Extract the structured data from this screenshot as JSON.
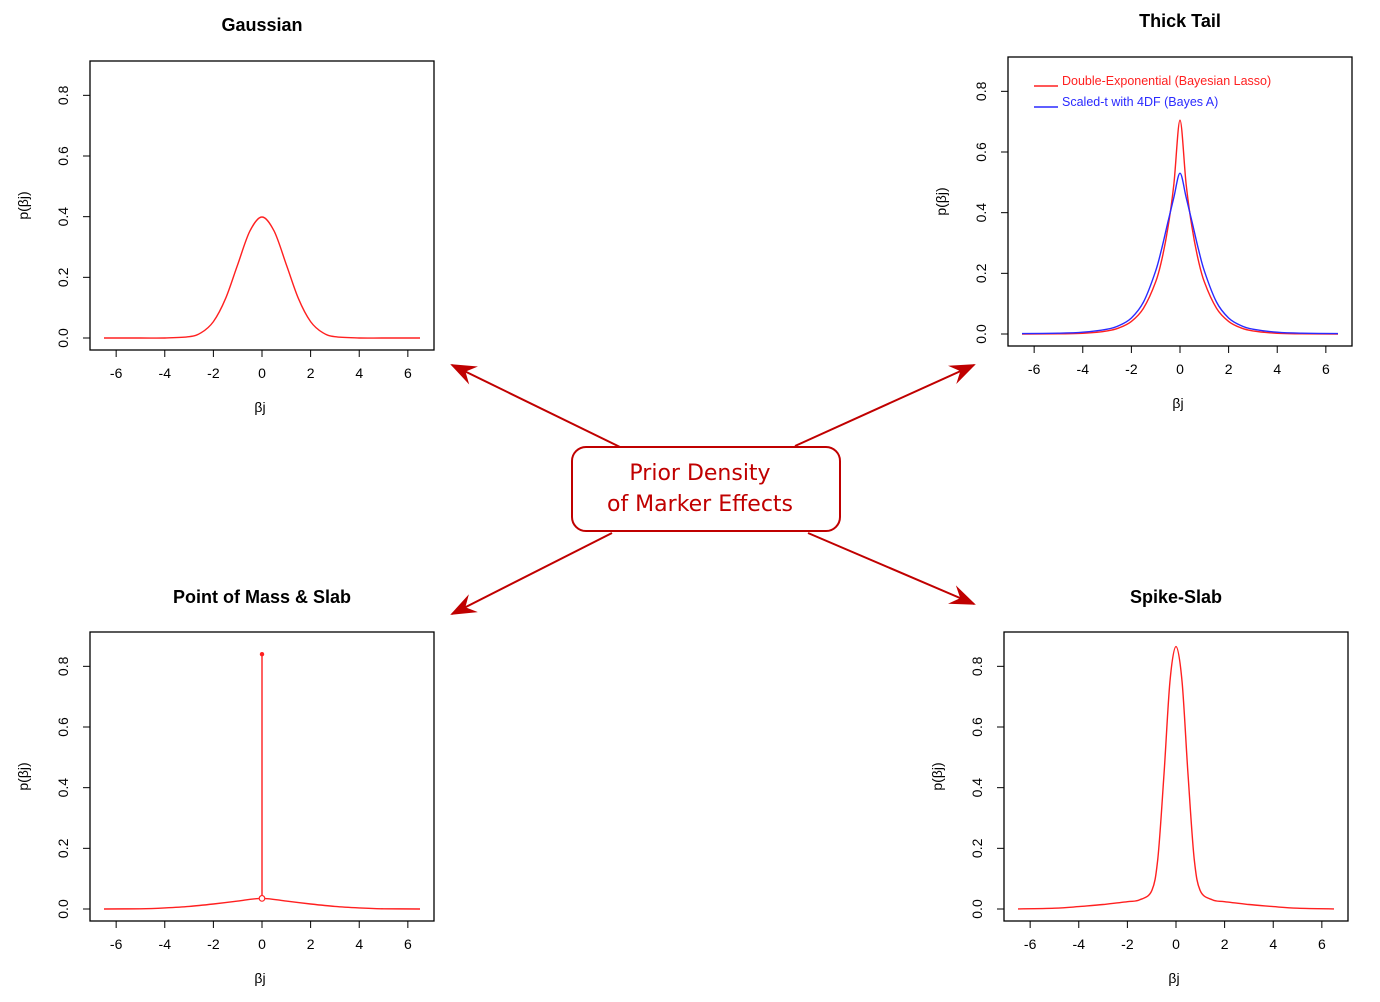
{
  "center_box": {
    "line1": "Prior Density",
    "line2": "of Marker Effects"
  },
  "colors": {
    "red": "#ff2020",
    "blue": "#2a2aff",
    "arrow": "#c00000"
  },
  "chart_data": [
    {
      "id": "gaussian",
      "type": "line",
      "title": "Gaussian",
      "xlabel": "βj",
      "ylabel": "p(βj)",
      "xlim": [
        -6.5,
        6.5
      ],
      "ylim": [
        0,
        0.9
      ],
      "xticks": [
        "-6",
        "-4",
        "-2",
        "0",
        "2",
        "4",
        "6"
      ],
      "yticks": [
        "0.0",
        "0.2",
        "0.4",
        "0.6",
        "0.8"
      ],
      "series": [
        {
          "color": "#ff2020",
          "x": [
            -6.5,
            -5,
            -4,
            -3,
            -2.5,
            -2,
            -1.5,
            -1,
            -0.5,
            0,
            0.5,
            1,
            1.5,
            2,
            2.5,
            3,
            4,
            5,
            6.5
          ],
          "values": [
            0,
            0,
            0.0001,
            0.0044,
            0.0175,
            0.054,
            0.1295,
            0.242,
            0.352,
            0.399,
            0.352,
            0.242,
            0.1295,
            0.054,
            0.0175,
            0.0044,
            0.0001,
            0,
            0
          ]
        }
      ]
    },
    {
      "id": "thick-tail",
      "type": "line",
      "title": "Thick Tail",
      "xlabel": "βj",
      "ylabel": "p(βj)",
      "xlim": [
        -6.5,
        6.5
      ],
      "ylim": [
        0,
        0.9
      ],
      "xticks": [
        "-6",
        "-4",
        "-2",
        "0",
        "2",
        "4",
        "6"
      ],
      "yticks": [
        "0.0",
        "0.2",
        "0.4",
        "0.6",
        "0.8"
      ],
      "legend": {
        "position": "top"
      },
      "series": [
        {
          "name": "Double-Exponential (Bayesian Lasso)",
          "color": "#ff2020",
          "x": [
            -6.5,
            -5,
            -4,
            -3,
            -2.5,
            -2,
            -1.5,
            -1,
            -0.75,
            -0.5,
            -0.25,
            0,
            0.25,
            0.5,
            0.75,
            1,
            1.5,
            2,
            2.5,
            3,
            4,
            5,
            6.5
          ],
          "values": [
            0.0001,
            0.0006,
            0.0024,
            0.0101,
            0.0205,
            0.0415,
            0.085,
            0.172,
            0.245,
            0.348,
            0.495,
            0.705,
            0.495,
            0.348,
            0.245,
            0.172,
            0.085,
            0.0415,
            0.0205,
            0.0101,
            0.0024,
            0.0006,
            0.0001
          ]
        },
        {
          "name": "Scaled-t with 4DF (Bayes A)",
          "color": "#2a2aff",
          "x": [
            -6.5,
            -5,
            -4,
            -3,
            -2.5,
            -2,
            -1.5,
            -1,
            -0.75,
            -0.5,
            -0.25,
            0,
            0.25,
            0.5,
            0.75,
            1,
            1.5,
            2,
            2.5,
            3,
            4,
            5,
            6.5
          ],
          "values": [
            0.0012,
            0.0026,
            0.0058,
            0.0158,
            0.0279,
            0.0528,
            0.1055,
            0.2084,
            0.2824,
            0.3676,
            0.4509,
            0.53,
            0.4509,
            0.3676,
            0.2824,
            0.2084,
            0.1055,
            0.0528,
            0.0279,
            0.0158,
            0.0058,
            0.0026,
            0.0012
          ]
        }
      ]
    },
    {
      "id": "point-mass-slab",
      "type": "line",
      "title": "Point of Mass & Slab",
      "xlabel": "βj",
      "ylabel": "p(βj)",
      "xlim": [
        -6.5,
        6.5
      ],
      "ylim": [
        0,
        0.9
      ],
      "xticks": [
        "-6",
        "-4",
        "-2",
        "0",
        "2",
        "4",
        "6"
      ],
      "yticks": [
        "0.0",
        "0.2",
        "0.4",
        "0.6",
        "0.8"
      ],
      "spike": {
        "x": 0,
        "top": 0.84,
        "bottom": 0.035
      },
      "series": [
        {
          "color": "#ff2020",
          "x": [
            -6.5,
            -5,
            -4,
            -3,
            -2,
            -1,
            0,
            1,
            2,
            3,
            4,
            5,
            6.5
          ],
          "values": [
            0.0001,
            0.0008,
            0.0035,
            0.0085,
            0.0165,
            0.0262,
            0.035,
            0.0262,
            0.0165,
            0.0085,
            0.0035,
            0.0008,
            0.0001
          ]
        }
      ]
    },
    {
      "id": "spike-slab",
      "type": "line",
      "title": "Spike-Slab",
      "xlabel": "βj",
      "ylabel": "p(βj)",
      "xlim": [
        -6.5,
        6.5
      ],
      "ylim": [
        0,
        0.9
      ],
      "xticks": [
        "-6",
        "-4",
        "-2",
        "0",
        "2",
        "4",
        "6"
      ],
      "yticks": [
        "0.0",
        "0.2",
        "0.4",
        "0.6",
        "0.8"
      ],
      "series": [
        {
          "color": "#ff2020",
          "x": [
            -6.5,
            -5,
            -4,
            -3,
            -2,
            -1.5,
            -1,
            -0.75,
            -0.5,
            -0.25,
            0,
            0.25,
            0.5,
            0.75,
            1,
            1.5,
            2,
            3,
            4,
            5,
            6.5
          ],
          "values": [
            0.0002,
            0.0025,
            0.008,
            0.015,
            0.024,
            0.03,
            0.06,
            0.165,
            0.435,
            0.748,
            0.865,
            0.748,
            0.435,
            0.165,
            0.06,
            0.03,
            0.024,
            0.015,
            0.008,
            0.0025,
            0.0002
          ]
        }
      ]
    }
  ]
}
